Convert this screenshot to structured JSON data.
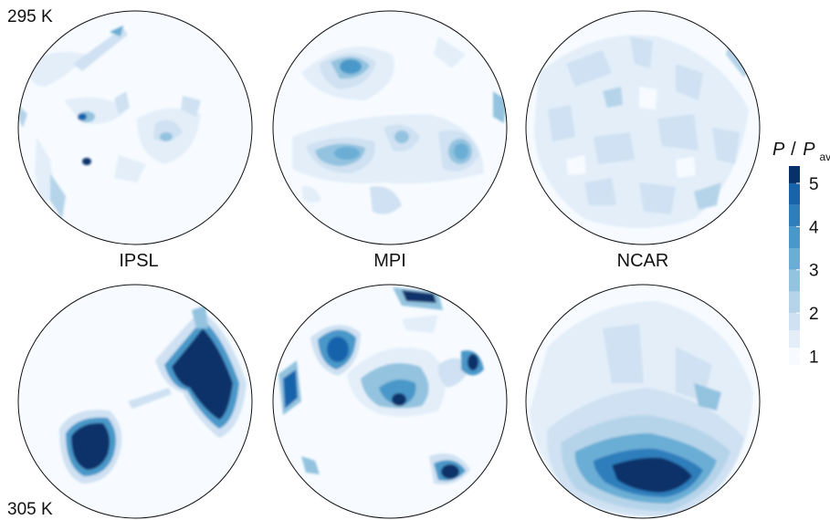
{
  "figure": {
    "row_labels": {
      "top": "295 K",
      "bottom": "305 K"
    },
    "model_labels": [
      "IPSL",
      "MPI",
      "NCAR"
    ],
    "colorbar": {
      "title_main": "P",
      "title_slash": "/",
      "title_p": "P",
      "title_sub": "avg",
      "ticks": [
        "1",
        "2",
        "3",
        "4",
        "5"
      ],
      "tick_values": [
        1,
        2,
        3,
        4,
        5
      ],
      "range": [
        0.8,
        5.4
      ],
      "levels": [
        {
          "min": 0.8,
          "max": 1.2,
          "color": "#f7fbff"
        },
        {
          "min": 1.2,
          "max": 1.6,
          "color": "#e3eef9"
        },
        {
          "min": 1.6,
          "max": 2.0,
          "color": "#cfe1f2"
        },
        {
          "min": 2.0,
          "max": 2.5,
          "color": "#b5d4e9"
        },
        {
          "min": 2.5,
          "max": 3.0,
          "color": "#93c3df"
        },
        {
          "min": 3.0,
          "max": 3.5,
          "color": "#6aadd5"
        },
        {
          "min": 3.5,
          "max": 4.0,
          "color": "#4a98c9"
        },
        {
          "min": 4.0,
          "max": 4.5,
          "color": "#2e7ebc"
        },
        {
          "min": 4.5,
          "max": 5.0,
          "color": "#1764ab"
        },
        {
          "min": 5.0,
          "max": 5.4,
          "color": "#08306b"
        }
      ]
    },
    "panels": [
      {
        "row": "top",
        "model": "IPSL",
        "blobs": [
          {
            "level": 0.25,
            "shape": "streak"
          },
          {
            "level": 0.55,
            "shape": "spot"
          },
          {
            "level": 0.95,
            "shape": "dot"
          }
        ]
      },
      {
        "row": "top",
        "model": "MPI",
        "blobs": [
          {
            "level": 0.55,
            "shape": "patch"
          },
          {
            "level": 0.45,
            "shape": "patch"
          }
        ]
      },
      {
        "row": "top",
        "model": "NCAR",
        "blobs": [
          {
            "level": 0.2,
            "shape": "mottled"
          }
        ]
      },
      {
        "row": "bottom",
        "model": "IPSL",
        "blobs": [
          {
            "level": 1.0,
            "shape": "blob"
          },
          {
            "level": 1.0,
            "shape": "streak"
          }
        ]
      },
      {
        "row": "bottom",
        "model": "MPI",
        "blobs": [
          {
            "level": 0.8,
            "shape": "patch"
          },
          {
            "level": 0.6,
            "shape": "patch"
          }
        ]
      },
      {
        "row": "bottom",
        "model": "NCAR",
        "blobs": [
          {
            "level": 1.0,
            "shape": "fan"
          }
        ]
      }
    ]
  }
}
